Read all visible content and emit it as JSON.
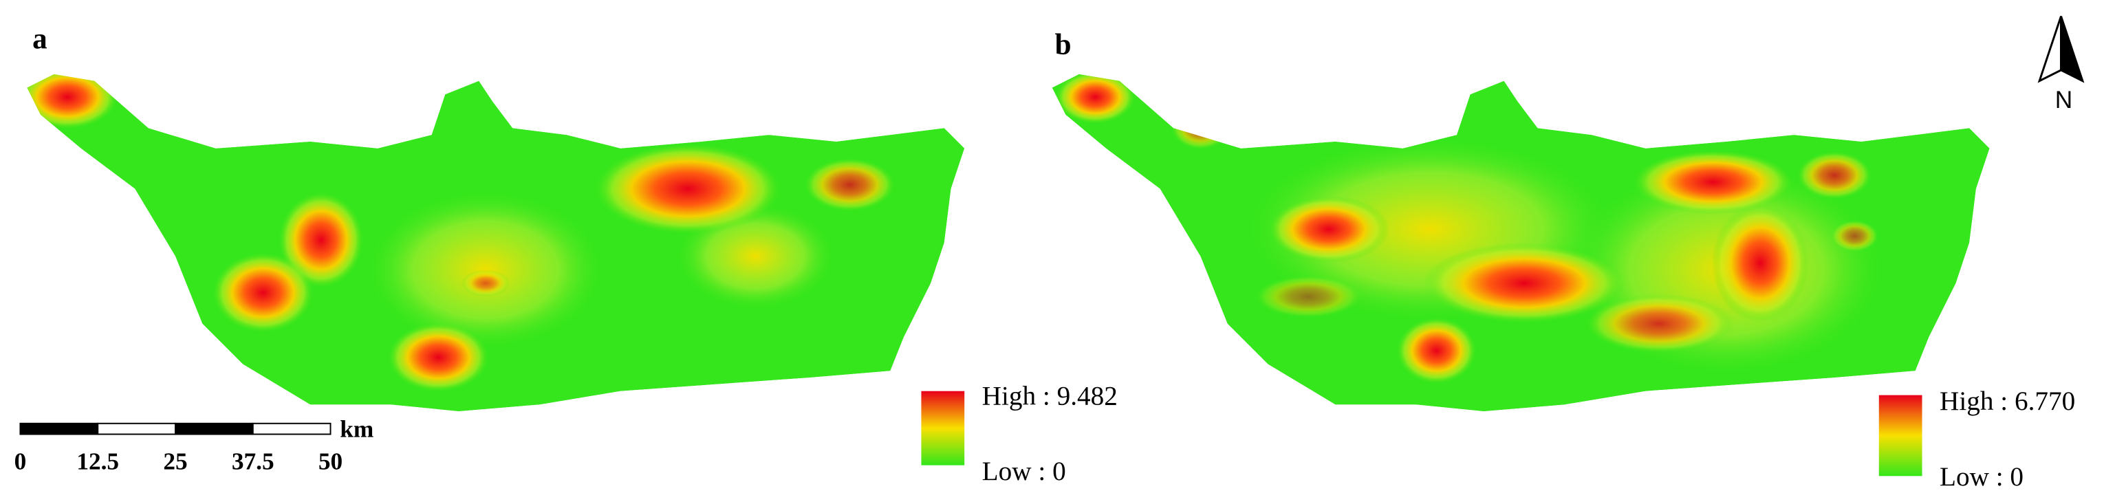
{
  "panels": [
    {
      "label": "a",
      "legend": {
        "high": "High : 9.482",
        "low": "Low : 0"
      }
    },
    {
      "label": "b",
      "legend": {
        "high": "High : 6.770",
        "low": "Low : 0"
      }
    }
  ],
  "scale_bar": {
    "ticks": [
      "0",
      "12.5",
      "25",
      "37.5",
      "50"
    ],
    "unit": "km"
  },
  "north_arrow": "N"
}
